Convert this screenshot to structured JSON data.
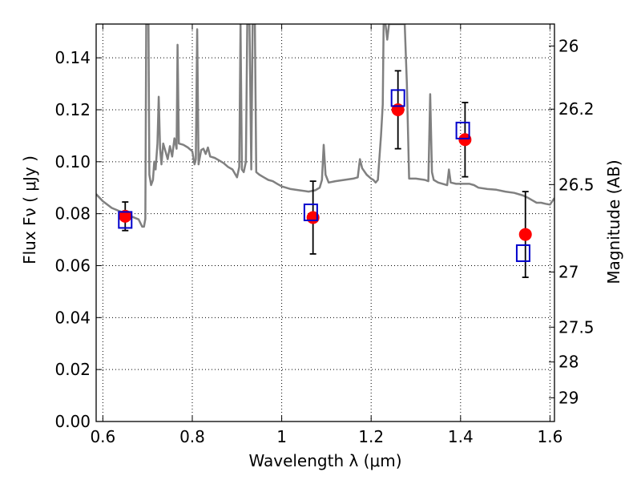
{
  "chart_data": {
    "type": "scatter",
    "xlabel": "Wavelength  λ (μm)",
    "ylabel": "Flux  Fν  ( μJy )",
    "ylabel_right": "Magnitude (AB)",
    "xlim": [
      0.585,
      1.61
    ],
    "ylim": [
      0,
      0.153
    ],
    "grid": true,
    "grid_style": "dotted",
    "x_ticks": [
      {
        "value": 0.6,
        "label": "0.6"
      },
      {
        "value": 0.8,
        "label": "0.8"
      },
      {
        "value": 1.0,
        "label": "1"
      },
      {
        "value": 1.2,
        "label": "1.2"
      },
      {
        "value": 1.4,
        "label": "1.4"
      },
      {
        "value": 1.6,
        "label": "1.6"
      }
    ],
    "y_ticks": [
      {
        "value": 0.0,
        "label": "0.00"
      },
      {
        "value": 0.02,
        "label": "0.02"
      },
      {
        "value": 0.04,
        "label": "0.04"
      },
      {
        "value": 0.06,
        "label": "0.06"
      },
      {
        "value": 0.08,
        "label": "0.08"
      },
      {
        "value": 0.1,
        "label": "0.10"
      },
      {
        "value": 0.12,
        "label": "0.12"
      },
      {
        "value": 0.14,
        "label": "0.14"
      }
    ],
    "right_ticks": [
      {
        "mag": 26,
        "label": "26"
      },
      {
        "mag": 26.2,
        "label": "26.2"
      },
      {
        "mag": 26.5,
        "label": "26.5"
      },
      {
        "mag": 27,
        "label": "27"
      },
      {
        "mag": 27.5,
        "label": "27.5"
      },
      {
        "mag": 28,
        "label": "28"
      },
      {
        "mag": 29,
        "label": "29"
      }
    ],
    "colors": {
      "model": "#808080",
      "observed": "#ff0000",
      "errorbar": "#000000",
      "model_photometry": "#0000cc"
    },
    "series": [
      {
        "kind": "line",
        "points": [
          [
            0.585,
            0.0875
          ],
          [
            0.6,
            0.0848
          ],
          [
            0.62,
            0.0822
          ],
          [
            0.64,
            0.0808
          ],
          [
            0.66,
            0.0792
          ],
          [
            0.68,
            0.0778
          ],
          [
            0.688,
            0.075
          ],
          [
            0.692,
            0.075
          ],
          [
            0.695,
            0.078
          ],
          [
            0.697,
            0.153
          ],
          [
            0.702,
            0.153
          ],
          [
            0.704,
            0.095
          ],
          [
            0.708,
            0.091
          ],
          [
            0.712,
            0.093
          ],
          [
            0.715,
            0.1
          ],
          [
            0.718,
            0.097
          ],
          [
            0.722,
            0.107
          ],
          [
            0.725,
            0.125
          ],
          [
            0.728,
            0.105
          ],
          [
            0.731,
            0.099
          ],
          [
            0.735,
            0.107
          ],
          [
            0.74,
            0.104
          ],
          [
            0.745,
            0.101
          ],
          [
            0.75,
            0.106
          ],
          [
            0.755,
            0.102
          ],
          [
            0.76,
            0.109
          ],
          [
            0.765,
            0.105
          ],
          [
            0.767,
            0.145
          ],
          [
            0.77,
            0.107
          ],
          [
            0.78,
            0.1065
          ],
          [
            0.79,
            0.1055
          ],
          [
            0.8,
            0.104
          ],
          [
            0.805,
            0.099
          ],
          [
            0.808,
            0.101
          ],
          [
            0.811,
            0.151
          ],
          [
            0.814,
            0.099
          ],
          [
            0.82,
            0.1045
          ],
          [
            0.825,
            0.105
          ],
          [
            0.83,
            0.103
          ],
          [
            0.835,
            0.1055
          ],
          [
            0.84,
            0.102
          ],
          [
            0.85,
            0.1015
          ],
          [
            0.86,
            0.1005
          ],
          [
            0.87,
            0.0995
          ],
          [
            0.88,
            0.098
          ],
          [
            0.89,
            0.097
          ],
          [
            0.9,
            0.094
          ],
          [
            0.905,
            0.098
          ],
          [
            0.908,
            0.153
          ],
          [
            0.911,
            0.097
          ],
          [
            0.915,
            0.096
          ],
          [
            0.92,
            0.1
          ],
          [
            0.923,
            0.153
          ],
          [
            0.928,
            0.153
          ],
          [
            0.932,
            0.097
          ],
          [
            0.935,
            0.153
          ],
          [
            0.94,
            0.153
          ],
          [
            0.943,
            0.096
          ],
          [
            0.95,
            0.095
          ],
          [
            0.96,
            0.094
          ],
          [
            0.97,
            0.093
          ],
          [
            0.98,
            0.0925
          ],
          [
            0.99,
            0.0915
          ],
          [
            1.0,
            0.0905
          ],
          [
            1.02,
            0.0895
          ],
          [
            1.04,
            0.089
          ],
          [
            1.06,
            0.0885
          ],
          [
            1.075,
            0.089
          ],
          [
            1.085,
            0.09
          ],
          [
            1.09,
            0.093
          ],
          [
            1.094,
            0.1065
          ],
          [
            1.098,
            0.095
          ],
          [
            1.105,
            0.092
          ],
          [
            1.12,
            0.0925
          ],
          [
            1.14,
            0.093
          ],
          [
            1.16,
            0.0935
          ],
          [
            1.17,
            0.094
          ],
          [
            1.175,
            0.101
          ],
          [
            1.18,
            0.0975
          ],
          [
            1.19,
            0.095
          ],
          [
            1.2,
            0.0935
          ],
          [
            1.205,
            0.093
          ],
          [
            1.21,
            0.092
          ],
          [
            1.215,
            0.093
          ],
          [
            1.218,
            0.1
          ],
          [
            1.222,
            0.11
          ],
          [
            1.226,
            0.122
          ],
          [
            1.228,
            0.153
          ],
          [
            1.232,
            0.153
          ],
          [
            1.236,
            0.147
          ],
          [
            1.24,
            0.153
          ],
          [
            1.275,
            0.153
          ],
          [
            1.28,
            0.13
          ],
          [
            1.285,
            0.0935
          ],
          [
            1.3,
            0.0935
          ],
          [
            1.32,
            0.093
          ],
          [
            1.328,
            0.0925
          ],
          [
            1.332,
            0.126
          ],
          [
            1.336,
            0.096
          ],
          [
            1.34,
            0.093
          ],
          [
            1.35,
            0.092
          ],
          [
            1.36,
            0.0915
          ],
          [
            1.37,
            0.091
          ],
          [
            1.374,
            0.097
          ],
          [
            1.378,
            0.092
          ],
          [
            1.39,
            0.0915
          ],
          [
            1.4,
            0.0915
          ],
          [
            1.42,
            0.0915
          ],
          [
            1.43,
            0.091
          ],
          [
            1.44,
            0.09
          ],
          [
            1.46,
            0.0895
          ],
          [
            1.48,
            0.0892
          ],
          [
            1.5,
            0.0885
          ],
          [
            1.52,
            0.088
          ],
          [
            1.54,
            0.087
          ],
          [
            1.55,
            0.0862
          ],
          [
            1.56,
            0.0852
          ],
          [
            1.57,
            0.0842
          ],
          [
            1.58,
            0.0842
          ],
          [
            1.59,
            0.0838
          ],
          [
            1.6,
            0.0835
          ],
          [
            1.61,
            0.086
          ]
        ]
      },
      {
        "kind": "points_with_errors",
        "points": [
          {
            "x": 0.65,
            "y": 0.079,
            "err": 0.0055
          },
          {
            "x": 1.07,
            "y": 0.0785,
            "err": 0.014
          },
          {
            "x": 1.26,
            "y": 0.12,
            "err": 0.015
          },
          {
            "x": 1.41,
            "y": 0.1085,
            "err": 0.0143
          },
          {
            "x": 1.545,
            "y": 0.072,
            "err": 0.0165
          }
        ]
      },
      {
        "kind": "open_squares",
        "points": [
          {
            "x": 0.65,
            "y": 0.0776
          },
          {
            "x": 1.065,
            "y": 0.0805
          },
          {
            "x": 1.26,
            "y": 0.1245
          },
          {
            "x": 1.405,
            "y": 0.112
          },
          {
            "x": 1.54,
            "y": 0.0648
          }
        ]
      }
    ]
  }
}
